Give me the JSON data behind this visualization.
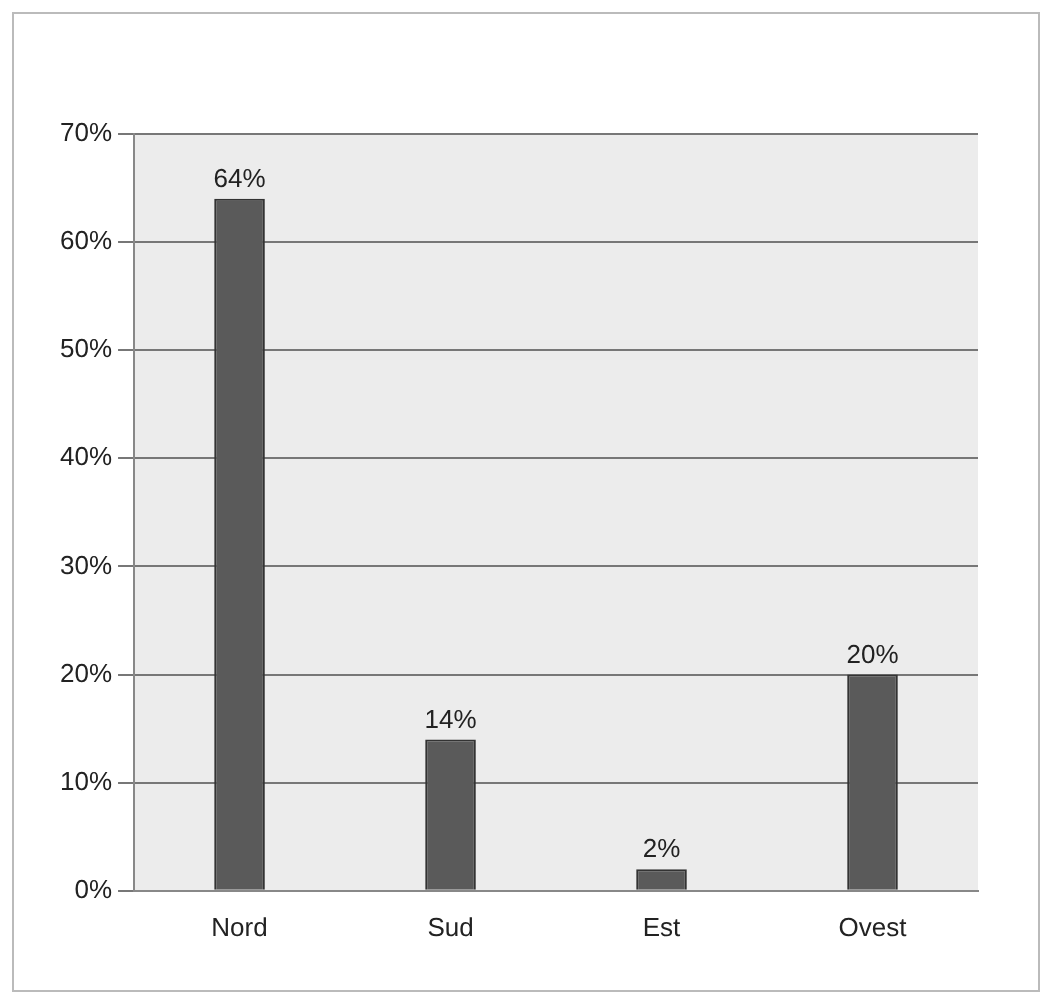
{
  "chart_data": {
    "type": "bar",
    "categories": [
      "Nord",
      "Sud",
      "Est",
      "Ovest"
    ],
    "values": [
      64,
      14,
      2,
      20
    ],
    "color": "#5a5a5a",
    "value_labels": [
      "64%",
      "14%",
      "2%",
      "20%"
    ],
    "ylim": [
      0,
      70
    ],
    "yticks": [
      {
        "value": 0,
        "label": "0%"
      },
      {
        "value": 10,
        "label": "10%"
      },
      {
        "value": 20,
        "label": "20%"
      },
      {
        "value": 30,
        "label": "30%"
      },
      {
        "value": 40,
        "label": "40%"
      },
      {
        "value": 50,
        "label": "50%"
      },
      {
        "value": 60,
        "label": "60%"
      },
      {
        "value": 70,
        "label": "70%"
      }
    ],
    "grid": "y",
    "legend": false
  }
}
